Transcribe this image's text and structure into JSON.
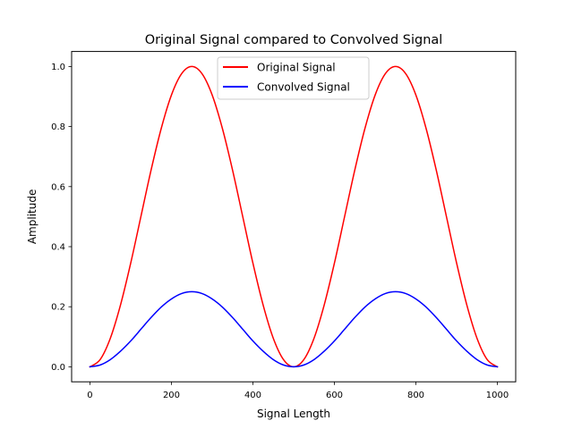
{
  "chart_data": {
    "type": "line",
    "title": "Original Signal compared to Convolved Signal",
    "xlabel": "Signal Length",
    "ylabel": "Amplitude",
    "xlim": [
      -45,
      1045
    ],
    "ylim": [
      -0.05,
      1.05
    ],
    "xticks": [
      0,
      200,
      400,
      600,
      800,
      1000
    ],
    "yticks": [
      0.0,
      0.2,
      0.4,
      0.6,
      0.8,
      1.0
    ],
    "grid": false,
    "legend_position": "top-center",
    "series": [
      {
        "name": "Original Signal",
        "color": "#ff0000",
        "x": [
          0,
          25,
          50,
          75,
          100,
          125,
          150,
          175,
          200,
          225,
          250,
          275,
          300,
          325,
          350,
          375,
          400,
          425,
          450,
          475,
          500,
          525,
          550,
          575,
          600,
          625,
          650,
          675,
          700,
          725,
          750,
          775,
          800,
          825,
          850,
          875,
          900,
          925,
          950,
          975,
          1000
        ],
        "y": [
          0.0,
          0.024,
          0.095,
          0.206,
          0.345,
          0.5,
          0.655,
          0.794,
          0.905,
          0.976,
          1.0,
          0.976,
          0.905,
          0.794,
          0.655,
          0.5,
          0.345,
          0.206,
          0.095,
          0.024,
          0.0,
          0.024,
          0.095,
          0.206,
          0.345,
          0.5,
          0.655,
          0.794,
          0.905,
          0.976,
          1.0,
          0.976,
          0.905,
          0.794,
          0.655,
          0.5,
          0.345,
          0.206,
          0.095,
          0.024,
          0.0
        ]
      },
      {
        "name": "Convolved Signal",
        "color": "#0000ff",
        "x": [
          0,
          25,
          50,
          75,
          100,
          125,
          150,
          175,
          200,
          225,
          250,
          275,
          300,
          325,
          350,
          375,
          400,
          425,
          450,
          475,
          500,
          525,
          550,
          575,
          600,
          625,
          650,
          675,
          700,
          725,
          750,
          775,
          800,
          825,
          850,
          875,
          900,
          925,
          950,
          975,
          1000
        ],
        "y": [
          0.0,
          0.006,
          0.024,
          0.052,
          0.086,
          0.125,
          0.164,
          0.199,
          0.226,
          0.244,
          0.25,
          0.244,
          0.226,
          0.199,
          0.164,
          0.125,
          0.086,
          0.052,
          0.024,
          0.006,
          0.0,
          0.006,
          0.024,
          0.052,
          0.086,
          0.125,
          0.164,
          0.199,
          0.226,
          0.244,
          0.25,
          0.244,
          0.226,
          0.199,
          0.164,
          0.125,
          0.086,
          0.052,
          0.024,
          0.006,
          0.0
        ]
      }
    ]
  }
}
